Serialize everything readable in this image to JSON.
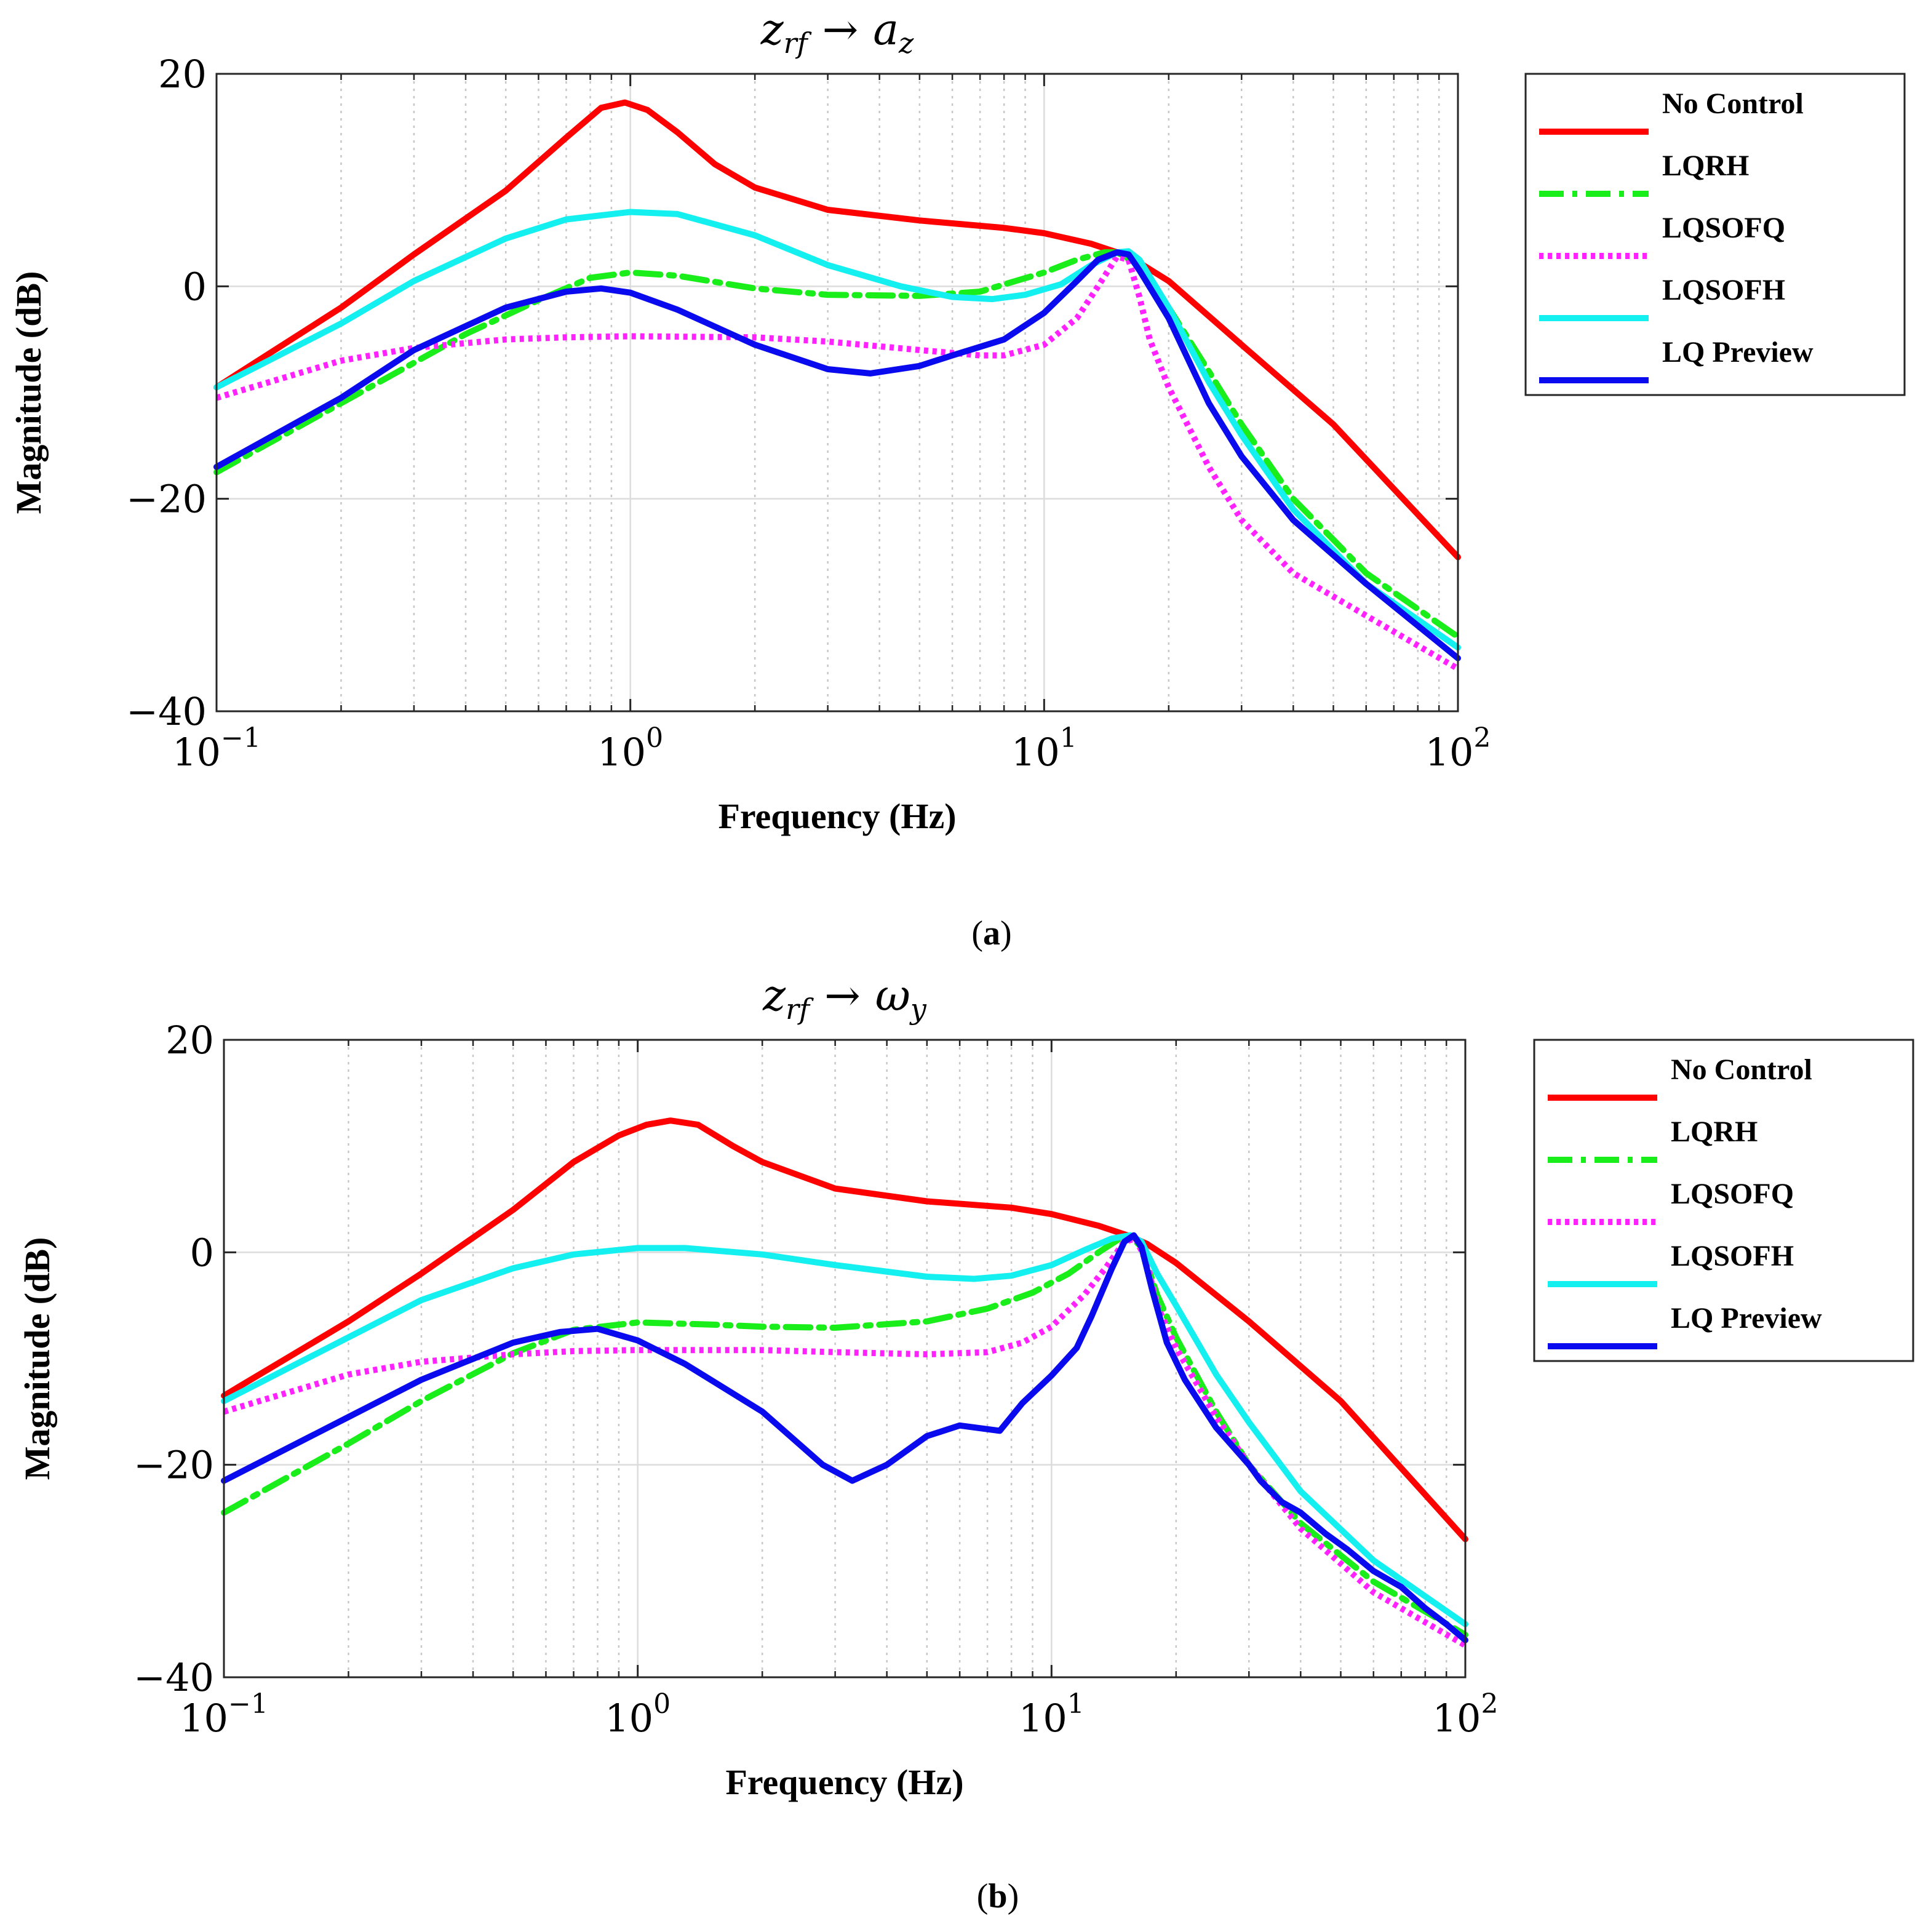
{
  "chart_data": [
    {
      "type": "line",
      "title": "z_rf → a_z",
      "title_main": "z",
      "title_sub": "rf",
      "title_arrow": "→",
      "title_target": "a",
      "title_target_sub": "z",
      "xlabel": "Frequency (Hz)",
      "ylabel": "Magnitude (dB)",
      "xscale": "log",
      "xlim": [
        0.1,
        100
      ],
      "ylim": [
        -40,
        20
      ],
      "yticks": [
        20,
        0,
        -20,
        -40
      ],
      "ytick_labels": [
        "20",
        "0",
        "−20",
        "−40"
      ],
      "xticks": [
        0.1,
        1,
        10,
        100
      ],
      "xtick_base": "10",
      "xtick_exps": [
        "−1",
        "0",
        "1",
        "2"
      ],
      "grid": true,
      "legend_position": "outside-right-top",
      "caption_open": "(",
      "caption_letter": "a",
      "caption_close": ")",
      "series": [
        {
          "name": "No Control",
          "color": "#ff0000",
          "style": "solid",
          "x": [
            0.1,
            0.2,
            0.3,
            0.5,
            0.7,
            0.85,
            0.97,
            1.1,
            1.3,
            1.6,
            2,
            3,
            5,
            8,
            10,
            13,
            15,
            17,
            20,
            30,
            50,
            100
          ],
          "y": [
            -9.5,
            -2,
            3,
            9,
            14,
            16.8,
            17.3,
            16.6,
            14.5,
            11.5,
            9.3,
            7.2,
            6.2,
            5.5,
            5,
            4,
            3.2,
            2.2,
            0.5,
            -5.5,
            -13,
            -25.5
          ]
        },
        {
          "name": "LQRH",
          "color": "#1aee1a",
          "style": "dashdot",
          "x": [
            0.1,
            0.2,
            0.4,
            0.6,
            0.8,
            1,
            1.3,
            2,
            3,
            5,
            7,
            10,
            12,
            14,
            15,
            17,
            20,
            25,
            30,
            40,
            60,
            100
          ],
          "y": [
            -17.5,
            -11,
            -4.5,
            -1.3,
            0.8,
            1.3,
            1.0,
            -0.2,
            -0.8,
            -0.9,
            -0.5,
            1.3,
            2.5,
            3.2,
            3.2,
            2,
            -2,
            -8,
            -13,
            -20,
            -27,
            -33
          ]
        },
        {
          "name": "LQSOFQ",
          "color": "#ff22ff",
          "style": "dotted",
          "x": [
            0.1,
            0.2,
            0.3,
            0.5,
            0.7,
            1,
            2,
            3,
            5,
            7,
            8,
            10,
            12,
            13.5,
            15,
            16,
            17,
            18,
            20,
            25,
            30,
            40,
            60,
            100
          ],
          "y": [
            -10.5,
            -7,
            -5.8,
            -5,
            -4.8,
            -4.7,
            -4.8,
            -5.2,
            -6,
            -6.5,
            -6.5,
            -5.5,
            -3,
            0,
            2.8,
            2.5,
            -1,
            -5,
            -9.5,
            -17,
            -22,
            -27,
            -31,
            -36
          ]
        },
        {
          "name": "LQSOFH",
          "color": "#14f0f0",
          "style": "solid",
          "x": [
            0.1,
            0.2,
            0.3,
            0.5,
            0.7,
            1,
            1.3,
            2,
            3,
            4.5,
            6,
            7.5,
            9,
            11,
            13,
            15,
            16,
            17,
            20,
            25,
            30,
            40,
            60,
            100
          ],
          "y": [
            -9.5,
            -3.5,
            0.5,
            4.5,
            6.3,
            7,
            6.8,
            4.8,
            2,
            0,
            -1,
            -1.2,
            -0.8,
            0.2,
            2,
            3.2,
            3.3,
            2.5,
            -2,
            -9,
            -14,
            -21,
            -28,
            -34
          ]
        },
        {
          "name": "LQ Preview",
          "color": "#0a0aee",
          "style": "solid",
          "x": [
            0.1,
            0.2,
            0.3,
            0.5,
            0.7,
            0.85,
            1,
            1.3,
            2,
            3,
            3.8,
            5,
            6,
            8,
            10,
            12,
            13.5,
            15,
            16,
            17,
            20,
            25,
            30,
            40,
            60,
            100
          ],
          "y": [
            -17,
            -10.5,
            -6,
            -2,
            -0.5,
            -0.2,
            -0.6,
            -2.2,
            -5.5,
            -7.8,
            -8.2,
            -7.5,
            -6.5,
            -5,
            -2.5,
            0.5,
            2.5,
            3.2,
            3,
            1.5,
            -3,
            -11,
            -16,
            -22,
            -28,
            -35
          ]
        }
      ]
    },
    {
      "type": "line",
      "title": "z_rf → ω_y",
      "title_main": "z",
      "title_sub": "rf",
      "title_arrow": "→",
      "title_target": "ω",
      "title_target_sub": "y",
      "xlabel": "Frequency (Hz)",
      "ylabel": "Magnitude (dB)",
      "xscale": "log",
      "xlim": [
        0.1,
        100
      ],
      "ylim": [
        -40,
        20
      ],
      "yticks": [
        20,
        0,
        -20,
        -40
      ],
      "ytick_labels": [
        "20",
        "0",
        "−20",
        "−40"
      ],
      "xticks": [
        0.1,
        1,
        10,
        100
      ],
      "xtick_base": "10",
      "xtick_exps": [
        "−1",
        "0",
        "1",
        "2"
      ],
      "grid": true,
      "legend_position": "outside-right-top",
      "caption_open": "(",
      "caption_letter": "b",
      "caption_close": ")",
      "series": [
        {
          "name": "No Control",
          "color": "#ff0000",
          "style": "solid",
          "x": [
            0.1,
            0.2,
            0.3,
            0.5,
            0.7,
            0.9,
            1.05,
            1.2,
            1.4,
            1.7,
            2,
            3,
            5,
            8,
            10,
            13,
            15.5,
            17,
            20,
            30,
            50,
            100
          ],
          "y": [
            -13.5,
            -6.5,
            -2,
            4,
            8.5,
            11,
            12,
            12.4,
            12,
            10,
            8.5,
            6,
            4.8,
            4.2,
            3.6,
            2.5,
            1.5,
            0.8,
            -1,
            -6.5,
            -14,
            -27
          ]
        },
        {
          "name": "LQRH",
          "color": "#1aee1a",
          "style": "dashdot",
          "x": [
            0.1,
            0.2,
            0.3,
            0.5,
            0.7,
            1,
            1.5,
            2,
            3,
            5,
            7,
            9,
            11,
            13,
            14.5,
            15.5,
            16.5,
            18,
            20,
            25,
            30,
            40,
            60,
            100
          ],
          "y": [
            -24.5,
            -18,
            -14,
            -9.5,
            -7.3,
            -6.6,
            -6.8,
            -7,
            -7.1,
            -6.5,
            -5.3,
            -3.8,
            -2,
            0,
            1.2,
            1.5,
            0.5,
            -4,
            -8,
            -15,
            -20,
            -25.5,
            -31,
            -36
          ]
        },
        {
          "name": "LQSOFQ",
          "color": "#ff22ff",
          "style": "dotted",
          "x": [
            0.1,
            0.2,
            0.3,
            0.5,
            0.7,
            1,
            2,
            3,
            5,
            7,
            8.5,
            10,
            12,
            13.5,
            15,
            16,
            17,
            18,
            20,
            25,
            30,
            40,
            60,
            100
          ],
          "y": [
            -15,
            -11.5,
            -10.3,
            -9.6,
            -9.3,
            -9.2,
            -9.2,
            -9.4,
            -9.6,
            -9.4,
            -8.5,
            -7,
            -4,
            -1.5,
            1,
            1.3,
            -1,
            -5,
            -9,
            -15.5,
            -20,
            -26,
            -32,
            -37
          ]
        },
        {
          "name": "LQSOFH",
          "color": "#14f0f0",
          "style": "solid",
          "x": [
            0.1,
            0.2,
            0.3,
            0.5,
            0.7,
            1,
            1.3,
            2,
            3,
            5,
            6.5,
            8,
            10,
            12,
            14,
            15.5,
            16.5,
            18,
            20,
            25,
            30,
            40,
            60,
            100
          ],
          "y": [
            -14,
            -8,
            -4.5,
            -1.5,
            -0.2,
            0.4,
            0.4,
            -0.2,
            -1.2,
            -2.3,
            -2.5,
            -2.2,
            -1.2,
            0.2,
            1.3,
            1.6,
            1,
            -2,
            -5,
            -11.5,
            -16,
            -22.5,
            -29,
            -35
          ]
        },
        {
          "name": "LQ Preview",
          "color": "#0a0aee",
          "style": "solid",
          "x": [
            0.1,
            0.2,
            0.3,
            0.5,
            0.65,
            0.8,
            1,
            1.3,
            2,
            2.8,
            3.3,
            4,
            5,
            6,
            7.5,
            8.5,
            10,
            11.5,
            12.5,
            14,
            15,
            15.8,
            16.5,
            17.5,
            19,
            21,
            25,
            30,
            32,
            36,
            40,
            46,
            52,
            60,
            70,
            80,
            90,
            100
          ],
          "y": [
            -21.5,
            -15.5,
            -12,
            -8.5,
            -7.5,
            -7.2,
            -8.3,
            -10.5,
            -15,
            -20,
            -21.5,
            -20,
            -17.3,
            -16.3,
            -16.8,
            -14.2,
            -11.6,
            -9,
            -6,
            -1.5,
            1,
            1.6,
            0.5,
            -3.5,
            -8.5,
            -12,
            -16.5,
            -20,
            -21.5,
            -23.5,
            -24.5,
            -26.5,
            -28,
            -30,
            -31.5,
            -33.5,
            -35,
            -36.5
          ]
        }
      ]
    }
  ]
}
